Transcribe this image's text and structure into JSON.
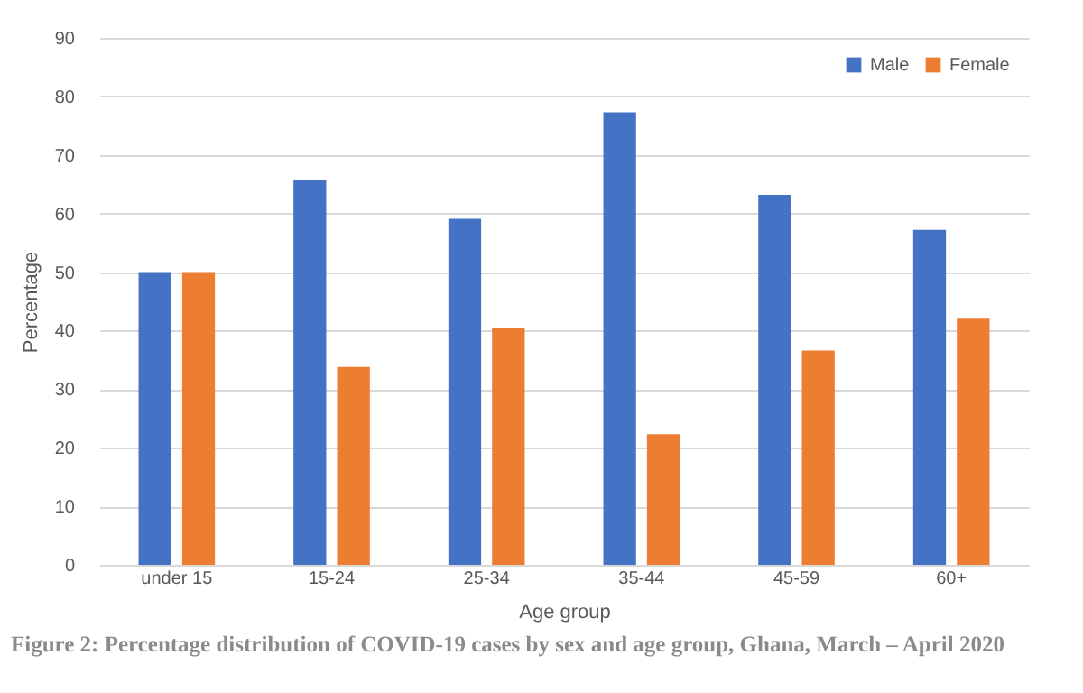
{
  "chart_data": {
    "type": "bar",
    "xlabel": "Age group",
    "ylabel": "Percentage",
    "categories": [
      "under 15",
      "15-24",
      "25-34",
      "35-44",
      "45-59",
      "60+"
    ],
    "series": [
      {
        "name": "Male",
        "color": "#4472c4",
        "values": [
          50,
          65.7,
          59.1,
          77.3,
          63.2,
          57.2
        ]
      },
      {
        "name": "Female",
        "color": "#ed7d31",
        "values": [
          50,
          33.8,
          40.5,
          22.3,
          36.6,
          42.2
        ]
      }
    ],
    "ylim": [
      0,
      90
    ],
    "yticks": [
      0,
      10,
      20,
      30,
      40,
      50,
      60,
      70,
      80,
      90
    ],
    "grid": "y",
    "legend": "top right",
    "annotations": [
      "Figure 2: Percentage distribution of COVID-19 cases by sex and age group, Ghana, March – April 2020"
    ]
  }
}
